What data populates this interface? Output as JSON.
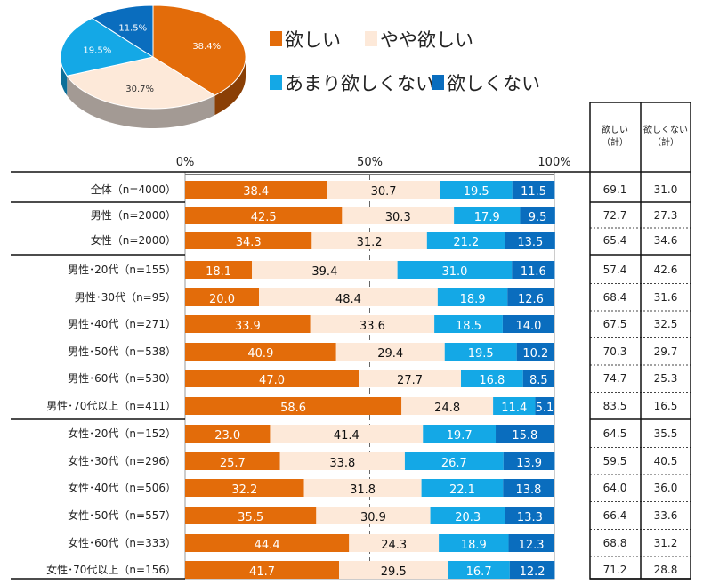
{
  "chart_data": {
    "type": "bar",
    "stacked": true,
    "orientation": "horizontal",
    "legend": [
      {
        "name": "欲しい",
        "color": "#E36C0A"
      },
      {
        "name": "やや欲しい",
        "color": "#FDE9D9"
      },
      {
        "name": "あまり欲しくない",
        "color": "#14A8E6"
      },
      {
        "name": "欲しくない",
        "color": "#0A6DBE"
      }
    ],
    "xaxis": {
      "ticks": [
        "0%",
        "50%",
        "100%"
      ],
      "range": [
        0,
        100
      ]
    },
    "pie": {
      "values": [
        38.4,
        30.7,
        19.5,
        11.5
      ],
      "labels": [
        "38.4%",
        "30.7%",
        "19.5%",
        "11.5%"
      ]
    },
    "table_headers": [
      [
        "欲しい",
        "（計）"
      ],
      [
        "欲しくない",
        "（計）"
      ]
    ],
    "rows": [
      {
        "label": "全体（n=4000）",
        "values": [
          38.4,
          30.7,
          19.5,
          11.5
        ],
        "totals": [
          "69.1",
          "31.0"
        ]
      },
      {
        "label": "男性（n=2000）",
        "values": [
          42.5,
          30.3,
          17.9,
          9.5
        ],
        "totals": [
          "72.7",
          "27.3"
        ]
      },
      {
        "label": "女性（n=2000）",
        "values": [
          34.3,
          31.2,
          21.2,
          13.5
        ],
        "totals": [
          "65.4",
          "34.6"
        ]
      },
      {
        "label": "男性･20代（n=155）",
        "values": [
          18.1,
          39.4,
          31.0,
          11.6
        ],
        "totals": [
          "57.4",
          "42.6"
        ]
      },
      {
        "label": "男性･30代（n=95）",
        "values": [
          20.0,
          48.4,
          18.9,
          12.6
        ],
        "totals": [
          "68.4",
          "31.6"
        ]
      },
      {
        "label": "男性･40代（n=271）",
        "values": [
          33.9,
          33.6,
          18.5,
          14.0
        ],
        "totals": [
          "67.5",
          "32.5"
        ]
      },
      {
        "label": "男性･50代（n=538）",
        "values": [
          40.9,
          29.4,
          19.5,
          10.2
        ],
        "totals": [
          "70.3",
          "29.7"
        ]
      },
      {
        "label": "男性･60代（n=530）",
        "values": [
          47.0,
          27.7,
          16.8,
          8.5
        ],
        "totals": [
          "74.7",
          "25.3"
        ]
      },
      {
        "label": "男性･70代以上（n=411）",
        "values": [
          58.6,
          24.8,
          11.4,
          5.1
        ],
        "totals": [
          "83.5",
          "16.5"
        ]
      },
      {
        "label": "女性･20代（n=152）",
        "values": [
          23.0,
          41.4,
          19.7,
          15.8
        ],
        "totals": [
          "64.5",
          "35.5"
        ]
      },
      {
        "label": "女性･30代（n=296）",
        "values": [
          25.7,
          33.8,
          26.7,
          13.9
        ],
        "totals": [
          "59.5",
          "40.5"
        ]
      },
      {
        "label": "女性･40代（n=506）",
        "values": [
          32.2,
          31.8,
          22.1,
          13.8
        ],
        "totals": [
          "64.0",
          "36.0"
        ]
      },
      {
        "label": "女性･50代（n=557）",
        "values": [
          35.5,
          30.9,
          20.3,
          13.3
        ],
        "totals": [
          "66.4",
          "33.6"
        ]
      },
      {
        "label": "女性･60代（n=333）",
        "values": [
          44.4,
          24.3,
          18.9,
          12.3
        ],
        "totals": [
          "68.8",
          "31.2"
        ]
      },
      {
        "label": "女性･70代以上（n=156）",
        "values": [
          41.7,
          29.5,
          16.7,
          12.2
        ],
        "totals": [
          "71.2",
          "28.8"
        ]
      }
    ]
  }
}
